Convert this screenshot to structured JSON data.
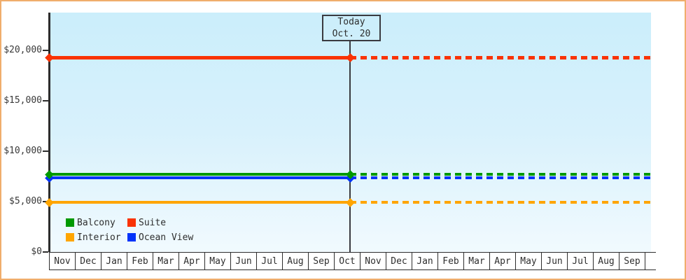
{
  "chart_data": {
    "type": "line",
    "x_categories": [
      "Nov",
      "Dec",
      "Jan",
      "Feb",
      "Mar",
      "Apr",
      "May",
      "Jun",
      "Jul",
      "Aug",
      "Sep",
      "Oct",
      "Nov",
      "Dec",
      "Jan",
      "Feb",
      "Mar",
      "Apr",
      "May",
      "Jun",
      "Jul",
      "Aug",
      "Sep"
    ],
    "y_axis": {
      "range": [
        0,
        23750
      ],
      "ticks": [
        {
          "label": "$20,000",
          "value": 20000
        },
        {
          "label": "$15,000",
          "value": 15000
        },
        {
          "label": "$10,000",
          "value": 10000
        },
        {
          "label": "$5,000",
          "value": 5000
        },
        {
          "label": "$0",
          "value": 0
        }
      ]
    },
    "today": {
      "label_line1": "Today",
      "label_line2": "Oct. 20",
      "x_category": "Oct"
    },
    "series": [
      {
        "name": "Suite",
        "color": "#fa3305",
        "value": 19300,
        "past_style": "solid",
        "future_style": "dashed",
        "marker": "diamond"
      },
      {
        "name": "Ocean View",
        "color": "#0333fa",
        "value": 7350,
        "past_style": "solid",
        "future_style": "dashed",
        "marker": "diamond"
      },
      {
        "name": "Balcony",
        "color": "#009900",
        "value": 7700,
        "past_style": "solid",
        "future_style": "dashed",
        "marker": "diamond"
      },
      {
        "name": "Interior",
        "color": "#ffa500",
        "value": 4900,
        "past_style": "solid",
        "future_style": "dashed",
        "marker": "diamond"
      }
    ],
    "legend": [
      {
        "label": "Balcony",
        "color": "#009900"
      },
      {
        "label": "Suite",
        "color": "#fa3305"
      },
      {
        "label": "Interior",
        "color": "#ffa500"
      },
      {
        "label": "Ocean View",
        "color": "#0333fa"
      }
    ]
  }
}
